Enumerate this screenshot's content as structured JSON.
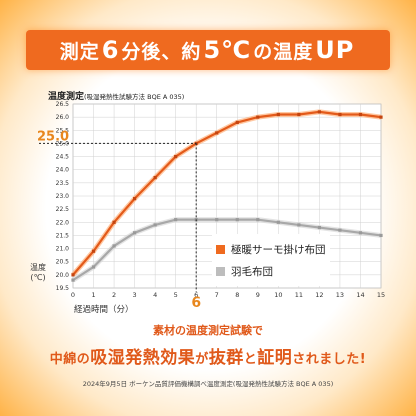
{
  "banner": {
    "part1": "測定",
    "num1": "6",
    "part2": "分後、約",
    "num2": "5℃",
    "part3": "の温度",
    "part4": "UP"
  },
  "chart_title": "温度測定",
  "chart_subtitle": "(吸湿発熱性試験方法 BQE A 035)",
  "ylabel_line1": "温度",
  "ylabel_line2": "(℃)",
  "xlabel": "経過時間（分）",
  "callout_y": "25.0",
  "callout_x": "6",
  "legend": {
    "series1": "極暖サーモ掛け布団",
    "series2": "羽毛布団"
  },
  "caption_line1": "素材の温度測定試験で",
  "caption_line2": {
    "a": "中綿の",
    "b": "吸湿発熱効果",
    "c": "が",
    "d": "抜群",
    "e": "と",
    "f": "証明",
    "g": "されました!"
  },
  "footnote": "2024年9月5日 ボーケン品質評価機構調べ温度測定(吸湿発熱性試験方法 BQE A 035)",
  "colors": {
    "accent": "#ef6a1f",
    "series1": "#e35a1a",
    "series2": "#b5b5b5"
  },
  "chart_data": {
    "type": "line",
    "title": "温度測定",
    "xlabel": "経過時間（分）",
    "ylabel": "温度(℃)",
    "x": [
      0,
      1,
      2,
      3,
      4,
      5,
      6,
      7,
      8,
      9,
      10,
      11,
      12,
      13,
      14,
      15
    ],
    "xlim": [
      0,
      15
    ],
    "ylim": [
      19.5,
      26.5
    ],
    "yticks": [
      19.5,
      20.0,
      20.5,
      21.0,
      21.5,
      22.0,
      22.5,
      23.0,
      23.5,
      24.0,
      24.5,
      25.0,
      25.5,
      26.0,
      26.5
    ],
    "series": [
      {
        "name": "極暖サーモ掛け布団",
        "values": [
          20.0,
          20.9,
          22.0,
          22.9,
          23.7,
          24.5,
          25.0,
          25.4,
          25.8,
          26.0,
          26.1,
          26.1,
          26.2,
          26.1,
          26.1,
          26.0
        ]
      },
      {
        "name": "羽毛布団",
        "values": [
          19.8,
          20.3,
          21.1,
          21.6,
          21.9,
          22.1,
          22.1,
          22.1,
          22.1,
          22.1,
          22.0,
          21.9,
          21.8,
          21.7,
          21.6,
          21.5
        ]
      }
    ],
    "annotation": {
      "x": 6,
      "y": 25.0
    },
    "grid": true,
    "legend": "bottom-right"
  }
}
